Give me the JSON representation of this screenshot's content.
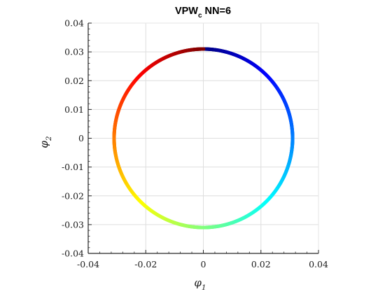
{
  "chart_data": {
    "type": "scatter",
    "title": {
      "main": "VPW",
      "subscript": "c",
      "rest": " NN=6"
    },
    "xlabel": {
      "symbol": "φ",
      "subscript": "1"
    },
    "ylabel": {
      "symbol": "φ",
      "subscript": "2"
    },
    "xlim": [
      -0.04,
      0.04
    ],
    "ylim": [
      -0.04,
      0.04
    ],
    "x_ticks": [
      -0.04,
      -0.02,
      0,
      0.02,
      0.04
    ],
    "x_tick_labels": [
      "-0.04",
      "-0.02",
      "0",
      "0.02",
      "0.04"
    ],
    "y_ticks": [
      -0.04,
      -0.03,
      -0.02,
      -0.01,
      0,
      0.01,
      0.02,
      0.03,
      0.04
    ],
    "y_tick_labels": [
      "-0.04",
      "-0.03",
      "-0.02",
      "-0.01",
      "0",
      "0.01",
      "0.02",
      "0.03",
      "0.04"
    ],
    "grid": true,
    "series": [
      {
        "shape": "circle",
        "center": [
          0,
          0
        ],
        "radius": 0.031,
        "colormap": "jet",
        "color_stops": [
          "#00007f",
          "#0000ff",
          "#007fff",
          "#00ffff",
          "#7fff7f",
          "#ffff00",
          "#ff7f00",
          "#ff0000",
          "#7f0000"
        ]
      }
    ]
  }
}
